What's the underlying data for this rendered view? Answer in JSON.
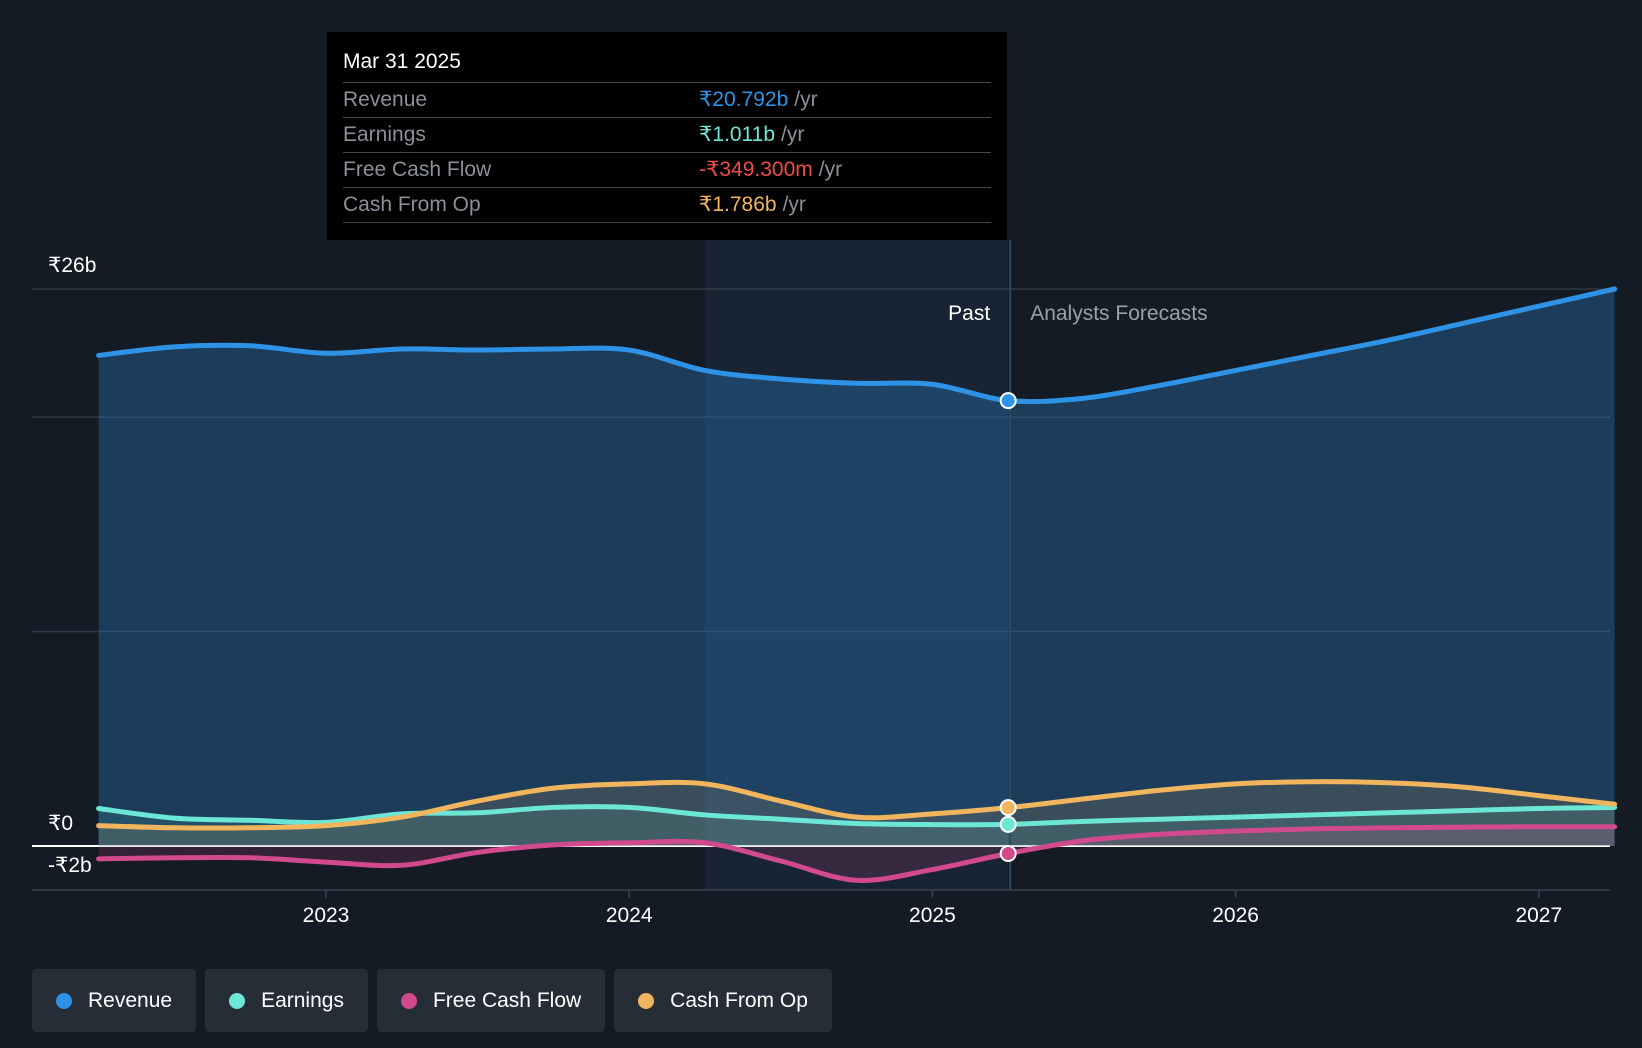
{
  "tooltip": {
    "date": "Mar 31 2025",
    "rows": [
      {
        "label": "Revenue",
        "value": "₹20.792b",
        "unit": "/yr",
        "color": "#2e93e6"
      },
      {
        "label": "Earnings",
        "value": "₹1.011b",
        "unit": "/yr",
        "color": "#6ce7d5"
      },
      {
        "label": "Free Cash Flow",
        "value": "-₹349.300m",
        "unit": "/yr",
        "color": "#f04a4a"
      },
      {
        "label": "Cash From Op",
        "value": "₹1.786b",
        "unit": "/yr",
        "color": "#f1b55e"
      }
    ]
  },
  "chart_data": {
    "type": "line",
    "title": "",
    "y_tick_labels": {
      "top": "₹26b",
      "zero": "₹0",
      "bottom": "-₹2b"
    },
    "ylim": [
      -2,
      26
    ],
    "xlim": [
      2022.2,
      2027.25
    ],
    "x_ticks": [
      2023,
      2024,
      2025,
      2026,
      2027
    ],
    "x_tick_labels": [
      "2023",
      "2024",
      "2025",
      "2026",
      "2027"
    ],
    "past_label": "Past",
    "forecast_label": "Analysts Forecasts",
    "highlight_range": [
      2024.25,
      2025.25
    ],
    "divider_x": 2025.25,
    "series": [
      {
        "name": "Revenue",
        "color": "#2e93e6",
        "fill": true,
        "points": [
          [
            2022.25,
            22.9
          ],
          [
            2022.5,
            23.3
          ],
          [
            2022.75,
            23.35
          ],
          [
            2023.0,
            23.0
          ],
          [
            2023.25,
            23.2
          ],
          [
            2023.5,
            23.15
          ],
          [
            2023.75,
            23.2
          ],
          [
            2024.0,
            23.15
          ],
          [
            2024.25,
            22.2
          ],
          [
            2024.5,
            21.8
          ],
          [
            2024.75,
            21.6
          ],
          [
            2025.0,
            21.55
          ],
          [
            2025.25,
            20.79
          ],
          [
            2025.5,
            20.9
          ],
          [
            2025.75,
            21.5
          ],
          [
            2026.0,
            22.2
          ],
          [
            2026.25,
            22.9
          ],
          [
            2026.5,
            23.6
          ],
          [
            2026.75,
            24.4
          ],
          [
            2027.0,
            25.2
          ],
          [
            2027.25,
            26.0
          ]
        ]
      },
      {
        "name": "Earnings",
        "color": "#6ce7d5",
        "fill": true,
        "points": [
          [
            2022.25,
            1.75
          ],
          [
            2022.5,
            1.3
          ],
          [
            2022.75,
            1.2
          ],
          [
            2023.0,
            1.1
          ],
          [
            2023.25,
            1.5
          ],
          [
            2023.5,
            1.55
          ],
          [
            2023.75,
            1.8
          ],
          [
            2024.0,
            1.8
          ],
          [
            2024.25,
            1.45
          ],
          [
            2024.5,
            1.25
          ],
          [
            2024.75,
            1.05
          ],
          [
            2025.0,
            1.0
          ],
          [
            2025.25,
            1.01
          ],
          [
            2025.5,
            1.15
          ],
          [
            2025.75,
            1.25
          ],
          [
            2026.0,
            1.35
          ],
          [
            2026.25,
            1.45
          ],
          [
            2026.5,
            1.55
          ],
          [
            2026.75,
            1.65
          ],
          [
            2027.0,
            1.75
          ],
          [
            2027.25,
            1.8
          ]
        ]
      },
      {
        "name": "Free Cash Flow",
        "color": "#d14a8e",
        "fill": true,
        "points": [
          [
            2022.25,
            -0.6
          ],
          [
            2022.5,
            -0.55
          ],
          [
            2022.75,
            -0.55
          ],
          [
            2023.0,
            -0.75
          ],
          [
            2023.25,
            -0.9
          ],
          [
            2023.5,
            -0.3
          ],
          [
            2023.75,
            0.05
          ],
          [
            2024.0,
            0.15
          ],
          [
            2024.25,
            0.15
          ],
          [
            2024.5,
            -0.7
          ],
          [
            2024.75,
            -1.6
          ],
          [
            2025.0,
            -1.1
          ],
          [
            2025.25,
            -0.35
          ],
          [
            2025.5,
            0.25
          ],
          [
            2025.75,
            0.55
          ],
          [
            2026.0,
            0.7
          ],
          [
            2026.25,
            0.8
          ],
          [
            2026.5,
            0.85
          ],
          [
            2026.75,
            0.88
          ],
          [
            2027.0,
            0.9
          ],
          [
            2027.25,
            0.9
          ]
        ]
      },
      {
        "name": "Cash From Op",
        "color": "#f1b55e",
        "fill": true,
        "points": [
          [
            2022.25,
            0.95
          ],
          [
            2022.5,
            0.85
          ],
          [
            2022.75,
            0.85
          ],
          [
            2023.0,
            0.95
          ],
          [
            2023.25,
            1.35
          ],
          [
            2023.5,
            2.1
          ],
          [
            2023.75,
            2.7
          ],
          [
            2024.0,
            2.9
          ],
          [
            2024.25,
            2.9
          ],
          [
            2024.5,
            2.1
          ],
          [
            2024.75,
            1.35
          ],
          [
            2025.0,
            1.5
          ],
          [
            2025.25,
            1.79
          ],
          [
            2025.5,
            2.2
          ],
          [
            2025.75,
            2.6
          ],
          [
            2026.0,
            2.9
          ],
          [
            2026.25,
            3.0
          ],
          [
            2026.5,
            2.95
          ],
          [
            2026.75,
            2.75
          ],
          [
            2027.0,
            2.35
          ],
          [
            2027.25,
            1.95
          ]
        ]
      }
    ],
    "markers_at": 2025.25
  }
}
